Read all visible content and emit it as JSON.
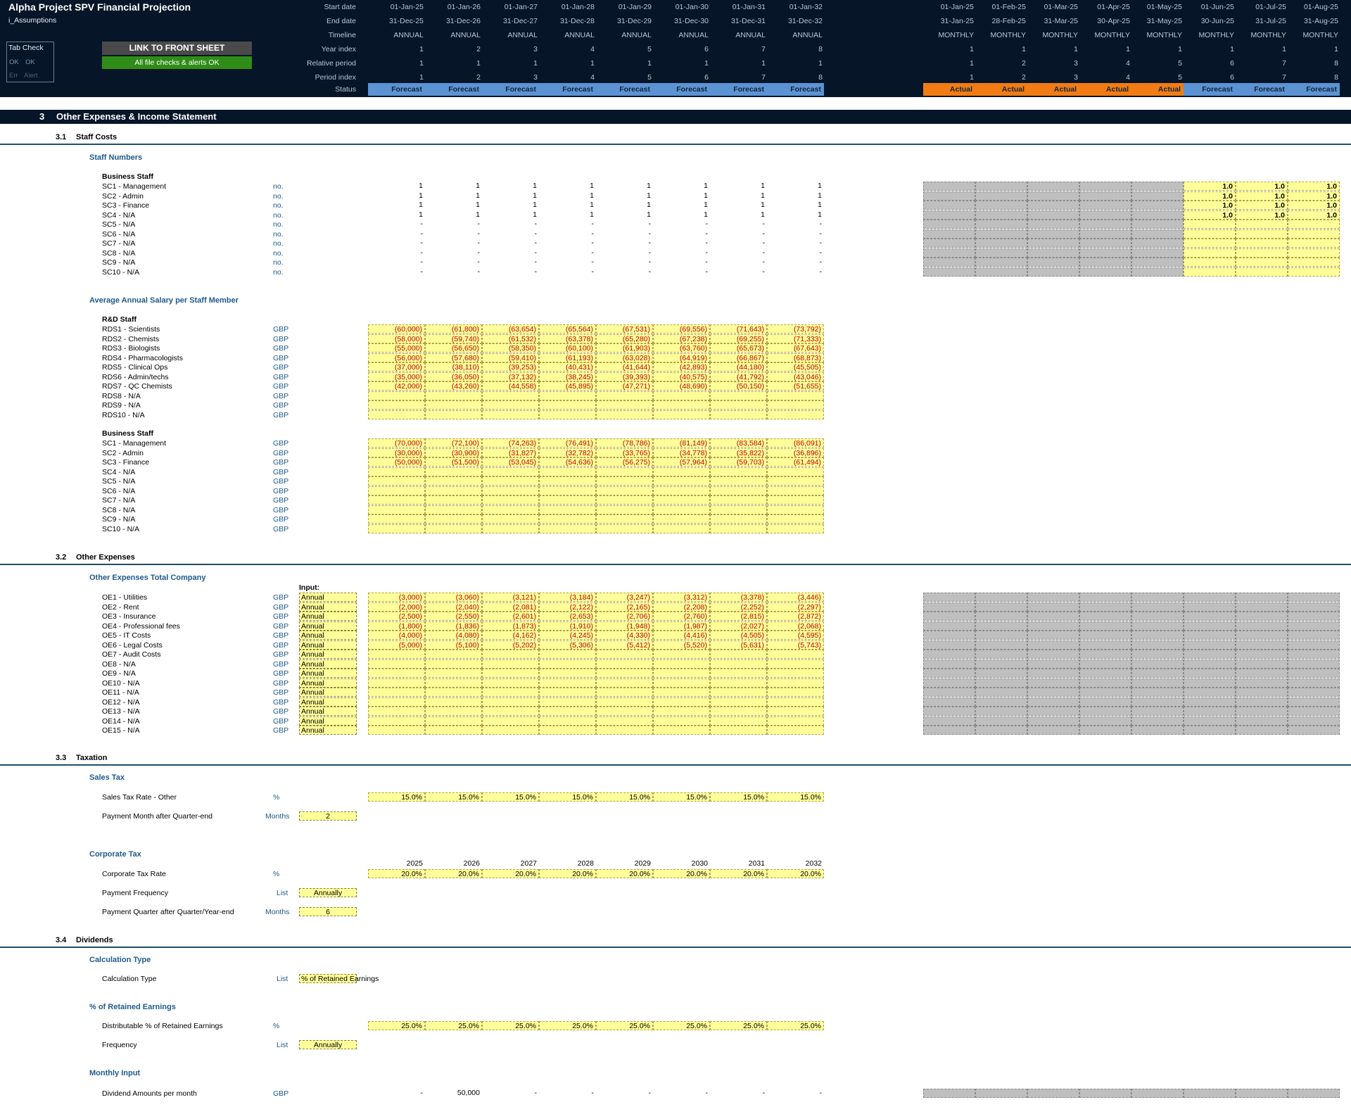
{
  "header": {
    "title": "Alpha Project SPV Financial Projection",
    "subtitle": "i_Assumptions",
    "row_labels": [
      "Start date",
      "End date",
      "Timeline",
      "Year index",
      "Relative period",
      "Period index",
      "Status"
    ],
    "annual": {
      "start": [
        "01-Jan-25",
        "01-Jan-26",
        "01-Jan-27",
        "01-Jan-28",
        "01-Jan-29",
        "01-Jan-30",
        "01-Jan-31",
        "01-Jan-32"
      ],
      "end": [
        "31-Dec-25",
        "31-Dec-26",
        "31-Dec-27",
        "31-Dec-28",
        "31-Dec-29",
        "31-Dec-30",
        "31-Dec-31",
        "31-Dec-32"
      ],
      "timeline": [
        "ANNUAL",
        "ANNUAL",
        "ANNUAL",
        "ANNUAL",
        "ANNUAL",
        "ANNUAL",
        "ANNUAL",
        "ANNUAL"
      ],
      "year_index": [
        "1",
        "2",
        "3",
        "4",
        "5",
        "6",
        "7",
        "8"
      ],
      "relative": [
        "1",
        "1",
        "1",
        "1",
        "1",
        "1",
        "1",
        "1"
      ],
      "period": [
        "1",
        "2",
        "3",
        "4",
        "5",
        "6",
        "7",
        "8"
      ],
      "status": [
        "Forecast",
        "Forecast",
        "Forecast",
        "Forecast",
        "Forecast",
        "Forecast",
        "Forecast",
        "Forecast"
      ]
    },
    "monthly": {
      "start": [
        "01-Jan-25",
        "01-Feb-25",
        "01-Mar-25",
        "01-Apr-25",
        "01-May-25",
        "01-Jun-25",
        "01-Jul-25",
        "01-Aug-25"
      ],
      "end": [
        "31-Jan-25",
        "28-Feb-25",
        "31-Mar-25",
        "30-Apr-25",
        "31-May-25",
        "30-Jun-25",
        "31-Jul-25",
        "31-Aug-25"
      ],
      "timeline": [
        "MONTHLY",
        "MONTHLY",
        "MONTHLY",
        "MONTHLY",
        "MONTHLY",
        "MONTHLY",
        "MONTHLY",
        "MONTHLY"
      ],
      "year_index": [
        "1",
        "1",
        "1",
        "1",
        "1",
        "1",
        "1",
        "1"
      ],
      "relative": [
        "1",
        "2",
        "3",
        "4",
        "5",
        "6",
        "7",
        "8"
      ],
      "period": [
        "1",
        "2",
        "3",
        "4",
        "5",
        "6",
        "7",
        "8"
      ],
      "status": [
        "Actual",
        "Actual",
        "Actual",
        "Actual",
        "Actual",
        "Forecast",
        "Forecast",
        "Forecast"
      ]
    },
    "tab_check": {
      "title": "Tab Check",
      "row1": [
        "OK",
        "OK"
      ],
      "row2": [
        "Err",
        "Alert"
      ]
    },
    "link_button": "LINK TO FRONT SHEET",
    "checks_status": "All file checks & alerts OK",
    "colors": {
      "header_bg": "#061528",
      "forecast": "#5b93d3",
      "actual": "#f27c13",
      "input": "#ffff99",
      "link_btn": "#4a4a4a",
      "ok_green": "#2f8d17"
    }
  },
  "section": {
    "number": "3",
    "title": "Other Expenses & Income Statement"
  },
  "staff_costs": {
    "number": "3.1",
    "title": "Staff Costs",
    "numbers_group": "Staff Numbers",
    "business_staff_label": "Business Staff",
    "staff_rows": [
      {
        "label": "SC1 - Management",
        "unit": "no.",
        "annual": [
          "1",
          "1",
          "1",
          "1",
          "1",
          "1",
          "1",
          "1"
        ],
        "monthly": [
          "",
          "",
          "",
          "",
          "",
          "1.0",
          "1.0",
          "1.0"
        ]
      },
      {
        "label": "SC2 - Admin",
        "unit": "no.",
        "annual": [
          "1",
          "1",
          "1",
          "1",
          "1",
          "1",
          "1",
          "1"
        ],
        "monthly": [
          "",
          "",
          "",
          "",
          "",
          "1.0",
          "1.0",
          "1.0"
        ]
      },
      {
        "label": "SC3 - Finance",
        "unit": "no.",
        "annual": [
          "1",
          "1",
          "1",
          "1",
          "1",
          "1",
          "1",
          "1"
        ],
        "monthly": [
          "",
          "",
          "",
          "",
          "",
          "1.0",
          "1.0",
          "1.0"
        ]
      },
      {
        "label": "SC4 - N/A",
        "unit": "no.",
        "annual": [
          "1",
          "1",
          "1",
          "1",
          "1",
          "1",
          "1",
          "1"
        ],
        "monthly": [
          "",
          "",
          "",
          "",
          "",
          "1.0",
          "1.0",
          "1.0"
        ]
      },
      {
        "label": "SC5 - N/A",
        "unit": "no.",
        "annual": [
          "-",
          "-",
          "-",
          "-",
          "-",
          "-",
          "-",
          "-"
        ],
        "monthly": [
          "",
          "",
          "",
          "",
          "",
          "",
          "",
          ""
        ]
      },
      {
        "label": "SC6 - N/A",
        "unit": "no.",
        "annual": [
          "-",
          "-",
          "-",
          "-",
          "-",
          "-",
          "-",
          "-"
        ],
        "monthly": [
          "",
          "",
          "",
          "",
          "",
          "",
          "",
          ""
        ]
      },
      {
        "label": "SC7 - N/A",
        "unit": "no.",
        "annual": [
          "-",
          "-",
          "-",
          "-",
          "-",
          "-",
          "-",
          "-"
        ],
        "monthly": [
          "",
          "",
          "",
          "",
          "",
          "",
          "",
          ""
        ]
      },
      {
        "label": "SC8 - N/A",
        "unit": "no.",
        "annual": [
          "-",
          "-",
          "-",
          "-",
          "-",
          "-",
          "-",
          "-"
        ],
        "monthly": [
          "",
          "",
          "",
          "",
          "",
          "",
          "",
          ""
        ]
      },
      {
        "label": "SC9 - N/A",
        "unit": "no.",
        "annual": [
          "-",
          "-",
          "-",
          "-",
          "-",
          "-",
          "-",
          "-"
        ],
        "monthly": [
          "",
          "",
          "",
          "",
          "",
          "",
          "",
          ""
        ]
      },
      {
        "label": "SC10 - N/A",
        "unit": "no.",
        "annual": [
          "-",
          "-",
          "-",
          "-",
          "-",
          "-",
          "-",
          "-"
        ],
        "monthly": [
          "",
          "",
          "",
          "",
          "",
          "",
          "",
          ""
        ]
      }
    ],
    "salary_group": "Average Annual Salary per Staff Member",
    "rd_staff_label": "R&D Staff",
    "rd_rows": [
      {
        "label": "RDS1 - Scientists",
        "unit": "GBP",
        "values": [
          "(60,000)",
          "(61,800)",
          "(63,654)",
          "(65,564)",
          "(67,531)",
          "(69,556)",
          "(71,643)",
          "(73,792)"
        ]
      },
      {
        "label": "RDS2 - Chemists",
        "unit": "GBP",
        "values": [
          "(58,000)",
          "(59,740)",
          "(61,532)",
          "(63,378)",
          "(65,280)",
          "(67,238)",
          "(69,255)",
          "(71,333)"
        ]
      },
      {
        "label": "RDS3 - Biologists",
        "unit": "GBP",
        "values": [
          "(55,000)",
          "(56,650)",
          "(58,350)",
          "(60,100)",
          "(61,903)",
          "(63,760)",
          "(65,673)",
          "(67,643)"
        ]
      },
      {
        "label": "RDS4 - Pharmacologists",
        "unit": "GBP",
        "values": [
          "(56,000)",
          "(57,680)",
          "(59,410)",
          "(61,193)",
          "(63,028)",
          "(64,919)",
          "(66,867)",
          "(68,873)"
        ]
      },
      {
        "label": "RDS5 - Clinical Ops",
        "unit": "GBP",
        "values": [
          "(37,000)",
          "(38,110)",
          "(39,253)",
          "(40,431)",
          "(41,644)",
          "(42,893)",
          "(44,180)",
          "(45,505)"
        ]
      },
      {
        "label": "RDS6 - Admin/techs",
        "unit": "GBP",
        "values": [
          "(35,000)",
          "(36,050)",
          "(37,132)",
          "(38,245)",
          "(39,393)",
          "(40,575)",
          "(41,792)",
          "(43,046)"
        ]
      },
      {
        "label": "RDS7 - QC Chemists",
        "unit": "GBP",
        "values": [
          "(42,000)",
          "(43,260)",
          "(44,558)",
          "(45,895)",
          "(47,271)",
          "(48,690)",
          "(50,150)",
          "(51,655)"
        ]
      },
      {
        "label": "RDS8 - N/A",
        "unit": "GBP",
        "values": [
          "",
          "",
          "",
          "",
          "",
          "",
          "",
          ""
        ]
      },
      {
        "label": "RDS9 - N/A",
        "unit": "GBP",
        "values": [
          "",
          "",
          "",
          "",
          "",
          "",
          "",
          ""
        ]
      },
      {
        "label": "RDS10 - N/A",
        "unit": "GBP",
        "values": [
          "",
          "",
          "",
          "",
          "",
          "",
          "",
          ""
        ]
      }
    ],
    "business_salary_label": "Business Staff",
    "business_rows": [
      {
        "label": "SC1 - Management",
        "unit": "GBP",
        "values": [
          "(70,000)",
          "(72,100)",
          "(74,263)",
          "(76,491)",
          "(78,786)",
          "(81,149)",
          "(83,584)",
          "(86,091)"
        ]
      },
      {
        "label": "SC2 - Admin",
        "unit": "GBP",
        "values": [
          "(30,000)",
          "(30,900)",
          "(31,827)",
          "(32,782)",
          "(33,765)",
          "(34,778)",
          "(35,822)",
          "(36,896)"
        ]
      },
      {
        "label": "SC3 - Finance",
        "unit": "GBP",
        "values": [
          "(50,000)",
          "(51,500)",
          "(53,045)",
          "(54,636)",
          "(56,275)",
          "(57,964)",
          "(59,703)",
          "(61,494)"
        ]
      },
      {
        "label": "SC4 - N/A",
        "unit": "GBP",
        "values": [
          "",
          "",
          "",
          "",
          "",
          "",
          "",
          ""
        ]
      },
      {
        "label": "SC5 - N/A",
        "unit": "GBP",
        "values": [
          "",
          "",
          "",
          "",
          "",
          "",
          "",
          ""
        ]
      },
      {
        "label": "SC6 - N/A",
        "unit": "GBP",
        "values": [
          "",
          "",
          "",
          "",
          "",
          "",
          "",
          ""
        ]
      },
      {
        "label": "SC7 - N/A",
        "unit": "GBP",
        "values": [
          "",
          "",
          "",
          "",
          "",
          "",
          "",
          ""
        ]
      },
      {
        "label": "SC8 - N/A",
        "unit": "GBP",
        "values": [
          "",
          "",
          "",
          "",
          "",
          "",
          "",
          ""
        ]
      },
      {
        "label": "SC9 - N/A",
        "unit": "GBP",
        "values": [
          "",
          "",
          "",
          "",
          "",
          "",
          "",
          ""
        ]
      },
      {
        "label": "SC10 - N/A",
        "unit": "GBP",
        "values": [
          "",
          "",
          "",
          "",
          "",
          "",
          "",
          ""
        ]
      }
    ]
  },
  "other_expenses": {
    "number": "3.2",
    "title": "Other Expenses",
    "group": "Other Expenses Total Company",
    "input_label": "Input:",
    "rows": [
      {
        "label": "OE1 - Utilities",
        "unit": "GBP",
        "input": "Annual",
        "values": [
          "(3,000)",
          "(3,060)",
          "(3,121)",
          "(3,184)",
          "(3,247)",
          "(3,312)",
          "(3,378)",
          "(3,446)"
        ]
      },
      {
        "label": "OE2 - Rent",
        "unit": "GBP",
        "input": "Annual",
        "values": [
          "(2,000)",
          "(2,040)",
          "(2,081)",
          "(2,122)",
          "(2,165)",
          "(2,208)",
          "(2,252)",
          "(2,297)"
        ]
      },
      {
        "label": "OE3 - Insurance",
        "unit": "GBP",
        "input": "Annual",
        "values": [
          "(2,500)",
          "(2,550)",
          "(2,601)",
          "(2,653)",
          "(2,706)",
          "(2,760)",
          "(2,815)",
          "(2,872)"
        ]
      },
      {
        "label": "OE4 - Professional fees",
        "unit": "GBP",
        "input": "Annual",
        "values": [
          "(1,800)",
          "(1,836)",
          "(1,873)",
          "(1,910)",
          "(1,948)",
          "(1,987)",
          "(2,027)",
          "(2,068)"
        ]
      },
      {
        "label": "OE5 - IT Costs",
        "unit": "GBP",
        "input": "Annual",
        "values": [
          "(4,000)",
          "(4,080)",
          "(4,162)",
          "(4,245)",
          "(4,330)",
          "(4,416)",
          "(4,505)",
          "(4,595)"
        ]
      },
      {
        "label": "OE6 - Legal Costs",
        "unit": "GBP",
        "input": "Annual",
        "values": [
          "(5,000)",
          "(5,100)",
          "(5,202)",
          "(5,306)",
          "(5,412)",
          "(5,520)",
          "(5,631)",
          "(5,743)"
        ]
      },
      {
        "label": "OE7 - Audit Costs",
        "unit": "GBP",
        "input": "Annual",
        "values": [
          "",
          "",
          "",
          "",
          "",
          "",
          "",
          ""
        ]
      },
      {
        "label": "OE8 - N/A",
        "unit": "GBP",
        "input": "Annual",
        "values": [
          "",
          "",
          "",
          "",
          "",
          "",
          "",
          ""
        ]
      },
      {
        "label": "OE9 - N/A",
        "unit": "GBP",
        "input": "Annual",
        "values": [
          "",
          "",
          "",
          "",
          "",
          "",
          "",
          ""
        ]
      },
      {
        "label": "OE10 - N/A",
        "unit": "GBP",
        "input": "Annual",
        "values": [
          "",
          "",
          "",
          "",
          "",
          "",
          "",
          ""
        ]
      },
      {
        "label": "OE11 - N/A",
        "unit": "GBP",
        "input": "Annual",
        "values": [
          "",
          "",
          "",
          "",
          "",
          "",
          "",
          ""
        ]
      },
      {
        "label": "OE12 - N/A",
        "unit": "GBP",
        "input": "Annual",
        "values": [
          "",
          "",
          "",
          "",
          "",
          "",
          "",
          ""
        ]
      },
      {
        "label": "OE13 - N/A",
        "unit": "GBP",
        "input": "Annual",
        "values": [
          "",
          "",
          "",
          "",
          "",
          "",
          "",
          ""
        ]
      },
      {
        "label": "OE14 - N/A",
        "unit": "GBP",
        "input": "Annual",
        "values": [
          "",
          "",
          "",
          "",
          "",
          "",
          "",
          ""
        ]
      },
      {
        "label": "OE15 - N/A",
        "unit": "GBP",
        "input": "Annual",
        "values": [
          "",
          "",
          "",
          "",
          "",
          "",
          "",
          ""
        ]
      }
    ]
  },
  "taxation": {
    "number": "3.3",
    "title": "Taxation",
    "sales_tax_group": "Sales Tax",
    "sales_tax_rate": {
      "label": "Sales Tax Rate - Other",
      "unit": "%",
      "values": [
        "15.0%",
        "15.0%",
        "15.0%",
        "15.0%",
        "15.0%",
        "15.0%",
        "15.0%",
        "15.0%"
      ]
    },
    "payment_month": {
      "label": "Payment Month after Quarter-end",
      "unit": "Months",
      "value": "2"
    },
    "corp_tax_group": "Corporate Tax",
    "years": [
      "2025",
      "2026",
      "2027",
      "2028",
      "2029",
      "2030",
      "2031",
      "2032"
    ],
    "corp_tax_rate": {
      "label": "Corporate Tax Rate",
      "unit": "%",
      "values": [
        "20.0%",
        "20.0%",
        "20.0%",
        "20.0%",
        "20.0%",
        "20.0%",
        "20.0%",
        "20.0%"
      ]
    },
    "payment_frequency": {
      "label": "Payment Frequency",
      "unit": "List",
      "value": "Annually"
    },
    "payment_quarter": {
      "label": "Payment Quarter after Quarter/Year-end",
      "unit": "Months",
      "value": "6"
    }
  },
  "dividends": {
    "number": "3.4",
    "title": "Dividends",
    "calc_group": "Calculation Type",
    "calc_type": {
      "label": "Calculation Type",
      "unit": "List",
      "value": "% of Retained Earnings"
    },
    "retained_group": "% of Retained Earnings",
    "distributable": {
      "label": "Distributable % of Retained Earnings",
      "unit": "%",
      "values": [
        "25.0%",
        "25.0%",
        "25.0%",
        "25.0%",
        "25.0%",
        "25.0%",
        "25.0%",
        "25.0%"
      ]
    },
    "frequency": {
      "label": "Frequency",
      "unit": "List",
      "value": "Annually"
    },
    "monthly_group": "Monthly Input",
    "dividend_amounts": {
      "label": "Dividend Amounts per month",
      "unit": "GBP",
      "values": [
        "-",
        "50,000",
        "-",
        "-",
        "-",
        "-",
        "-",
        "-"
      ]
    }
  }
}
